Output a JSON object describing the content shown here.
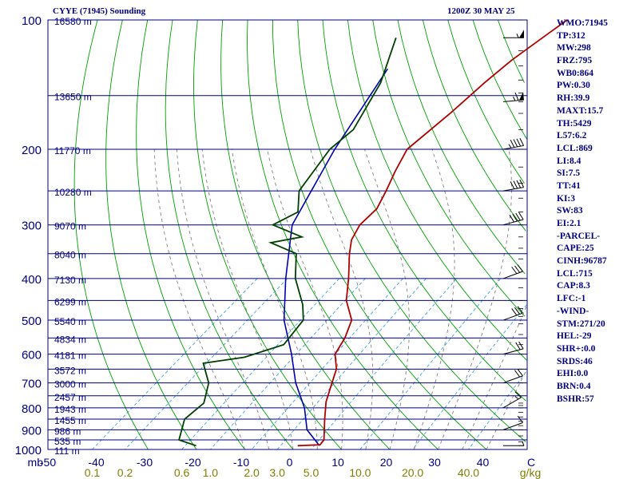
{
  "header": {
    "station": "CYYE (71945) Sounding",
    "time": "1200Z 30 MAY 25"
  },
  "indices": [
    "WMO:71945",
    "TP:312",
    "MW:298",
    "FRZ:795",
    "WB0:864",
    "PW:0.30",
    "RH:39.9",
    "MAXT:15.7",
    "TH:5429",
    "L57:6.2",
    "LCL:869",
    "LI:8.4",
    "SI:7.5",
    "TT:41",
    "KI:3",
    "SW:83",
    "EI:2.1",
    "-PARCEL-",
    "CAPE:25",
    "CINH:96787",
    "LCL:715",
    "CAP:8.3",
    "LFC:-1",
    "-WIND-",
    "STM:271/20",
    "HEL:-29",
    "SHR+:0.0",
    "SRDS:46",
    "EHI:0.0",
    "BRN:0.4",
    "BSHR:57"
  ],
  "colors": {
    "text": "#000080",
    "isobar": "#000080",
    "isotherm": "#000080",
    "dry_adiabat": "#00a000",
    "moist_adiabat": "#808080",
    "mixing_ratio": "#40a0e0",
    "temperature": "#b00000",
    "dewpoint": "#004000",
    "parcel": "#0000b0",
    "wind": "#000000",
    "mixing_labels": "#808000"
  },
  "chart_data": {
    "type": "skew-t",
    "x_axis_unit": "°C",
    "x_ticks": [
      "-50",
      "-40",
      "-30",
      "-20",
      "-10",
      "0",
      "10",
      "20",
      "30",
      "40",
      "C"
    ],
    "y_axis_unit": "mb",
    "pressure_ticks": [
      "100",
      "200",
      "300",
      "400",
      "500",
      "600",
      "700",
      "800",
      "900",
      "1000"
    ],
    "pressure_range": [
      100,
      1000
    ],
    "mixing_ratio_unit": "g/kg",
    "mixing_ratio_labels": [
      "0.1",
      "0.2",
      "0.6",
      "1.0",
      "2.0",
      "3.0",
      "5.0",
      "10.0",
      "20.0",
      "40.0"
    ],
    "height_labels": [
      {
        "p": 100,
        "text": "16580 m"
      },
      {
        "p": 150,
        "text": "13650 m"
      },
      {
        "p": 200,
        "text": "11770 m"
      },
      {
        "p": 250,
        "text": "10280 m"
      },
      {
        "p": 300,
        "text": "9070 m"
      },
      {
        "p": 350,
        "text": "8040 m"
      },
      {
        "p": 400,
        "text": "7130 m"
      },
      {
        "p": 450,
        "text": "6299 m"
      },
      {
        "p": 500,
        "text": "5540 m"
      },
      {
        "p": 550,
        "text": "4834 m"
      },
      {
        "p": 600,
        "text": "4181 m"
      },
      {
        "p": 650,
        "text": "3572 m"
      },
      {
        "p": 700,
        "text": "3000 m"
      },
      {
        "p": 750,
        "text": "2457 m"
      },
      {
        "p": 800,
        "text": "1943 m"
      },
      {
        "p": 850,
        "text": "1455 m"
      },
      {
        "p": 900,
        "text": "986 m"
      },
      {
        "p": 950,
        "text": "535 m"
      },
      {
        "p": 1000,
        "text": "111 m"
      }
    ],
    "temperature": [
      [
        100,
        -50
      ],
      [
        107,
        -50.5
      ],
      [
        124,
        -51.5
      ],
      [
        140,
        -51.5
      ],
      [
        165,
        -51
      ],
      [
        200,
        -51
      ],
      [
        225,
        -48
      ],
      [
        250,
        -45
      ],
      [
        275,
        -42.5
      ],
      [
        300,
        -42
      ],
      [
        325,
        -40
      ],
      [
        350,
        -37
      ],
      [
        400,
        -31
      ],
      [
        450,
        -26
      ],
      [
        500,
        -20
      ],
      [
        550,
        -17
      ],
      [
        600,
        -15
      ],
      [
        650,
        -11
      ],
      [
        700,
        -8.5
      ],
      [
        775,
        -5
      ],
      [
        850,
        -1
      ],
      [
        950,
        4
      ],
      [
        975,
        4.4
      ],
      [
        980,
        0
      ]
    ],
    "dewpoint": [
      [
        110,
        -81
      ],
      [
        140,
        -73
      ],
      [
        180,
        -67
      ],
      [
        200,
        -67
      ],
      [
        250,
        -63
      ],
      [
        280,
        -58
      ],
      [
        300,
        -60
      ],
      [
        320,
        -51
      ],
      [
        330,
        -56
      ],
      [
        350,
        -48
      ],
      [
        400,
        -42
      ],
      [
        460,
        -34
      ],
      [
        500,
        -30
      ],
      [
        570,
        -28
      ],
      [
        610,
        -33
      ],
      [
        630,
        -40
      ],
      [
        700,
        -34
      ],
      [
        780,
        -30
      ],
      [
        850,
        -30
      ],
      [
        950,
        -26
      ],
      [
        980,
        -21
      ]
    ],
    "parcel": [
      [
        130,
        -75
      ],
      [
        200,
        -66
      ],
      [
        300,
        -56
      ],
      [
        400,
        -44
      ],
      [
        500,
        -34
      ],
      [
        600,
        -24
      ],
      [
        700,
        -16
      ],
      [
        800,
        -8
      ],
      [
        900,
        -2
      ],
      [
        980,
        4.5
      ]
    ],
    "wind_pressures": [
      100,
      110,
      118,
      128,
      138,
      148,
      155,
      165,
      180,
      200,
      220,
      240,
      260,
      280,
      300,
      320,
      340,
      360,
      400,
      420,
      450,
      470,
      490,
      510,
      540,
      570,
      600,
      650,
      700,
      780,
      790,
      800,
      820,
      840,
      860,
      880,
      900,
      930,
      960,
      980
    ],
    "wind_barbs": [
      {
        "p": 110,
        "dir": 270,
        "spd": 55
      },
      {
        "p": 155,
        "dir": 265,
        "spd": 65
      },
      {
        "p": 200,
        "dir": 260,
        "spd": 45
      },
      {
        "p": 250,
        "dir": 260,
        "spd": 40
      },
      {
        "p": 300,
        "dir": 255,
        "spd": 40
      },
      {
        "p": 400,
        "dir": 250,
        "spd": 30
      },
      {
        "p": 500,
        "dir": 250,
        "spd": 30
      },
      {
        "p": 600,
        "dir": 255,
        "spd": 20
      },
      {
        "p": 700,
        "dir": 250,
        "spd": 20
      },
      {
        "p": 800,
        "dir": 240,
        "spd": 15
      },
      {
        "p": 900,
        "dir": 250,
        "spd": 10
      },
      {
        "p": 980,
        "dir": 270,
        "spd": 5
      }
    ],
    "grid": true
  }
}
